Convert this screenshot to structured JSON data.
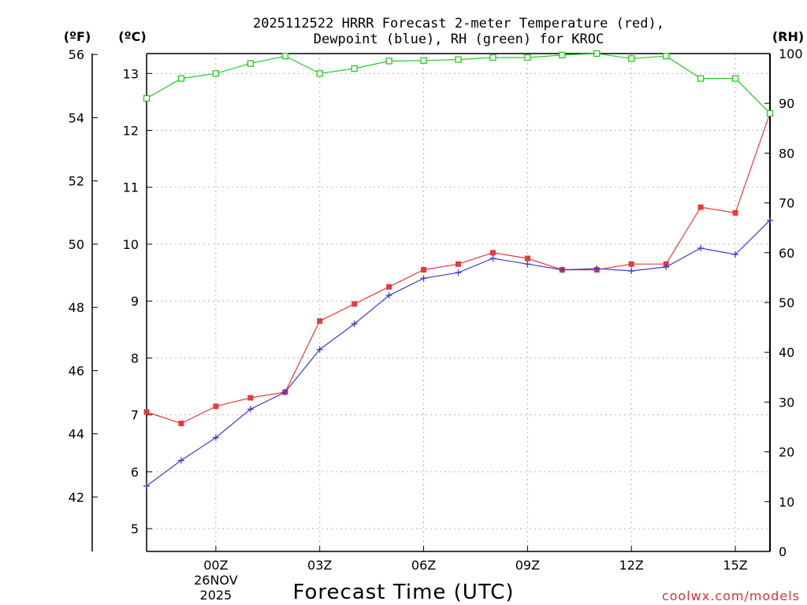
{
  "chart_data": {
    "type": "line",
    "title_line1": "2025112522 HRRR Forecast 2-meter Temperature (red),",
    "title_line2": "Dewpoint (blue), RH (green) for KROC",
    "xlabel": "Forecast Time (UTC)",
    "credit": "coolwx.com/models",
    "axis_units": {
      "f": "(ºF)",
      "c": "(ºC)",
      "rh": "(RH)"
    },
    "x_range": [
      -2,
      16
    ],
    "x_ticks": [
      {
        "x": 0,
        "label": "00Z",
        "sub1": "26NOV",
        "sub2": "2025"
      },
      {
        "x": 3,
        "label": "03Z"
      },
      {
        "x": 6,
        "label": "06Z"
      },
      {
        "x": 9,
        "label": "09Z"
      },
      {
        "x": 12,
        "label": "12Z"
      },
      {
        "x": 15,
        "label": "15Z"
      }
    ],
    "c_range": [
      4.6,
      13.35
    ],
    "c_ticks": [
      "5",
      "6",
      "7",
      "8",
      "9",
      "10",
      "11",
      "12",
      "13"
    ],
    "f_ticks": [
      "42",
      "44",
      "46",
      "48",
      "50",
      "52",
      "54",
      "56"
    ],
    "rh_range": [
      0,
      100
    ],
    "rh_ticks": [
      "0",
      "10",
      "20",
      "30",
      "40",
      "50",
      "60",
      "70",
      "80",
      "90",
      "100"
    ],
    "x": [
      -2,
      -1,
      0,
      1,
      2,
      3,
      4,
      5,
      6,
      7,
      8,
      9,
      10,
      11,
      12,
      13,
      14,
      15,
      16
    ],
    "series": [
      {
        "name": "Temperature",
        "unit": "C",
        "color": "#e8393c",
        "marker": "filled-square",
        "values": [
          7.05,
          6.85,
          7.15,
          7.3,
          7.4,
          8.65,
          8.95,
          9.25,
          9.55,
          9.65,
          9.85,
          9.75,
          9.55,
          9.55,
          9.65,
          9.65,
          10.65,
          10.55,
          12.3
        ]
      },
      {
        "name": "Dewpoint",
        "unit": "C",
        "color": "#3a3ad8",
        "marker": "plus",
        "values": [
          5.75,
          6.2,
          6.6,
          7.1,
          7.4,
          8.15,
          8.6,
          9.1,
          9.4,
          9.5,
          9.75,
          9.65,
          9.55,
          9.57,
          9.53,
          9.6,
          9.93,
          9.82,
          10.42
        ]
      },
      {
        "name": "RH",
        "unit": "%",
        "color": "#22cc22",
        "marker": "open-square",
        "values": [
          91,
          95,
          96,
          98,
          99.5,
          96,
          97,
          98.5,
          98.6,
          98.8,
          99.2,
          99.2,
          99.7,
          100,
          99,
          99.5,
          95,
          95,
          88
        ]
      }
    ]
  }
}
